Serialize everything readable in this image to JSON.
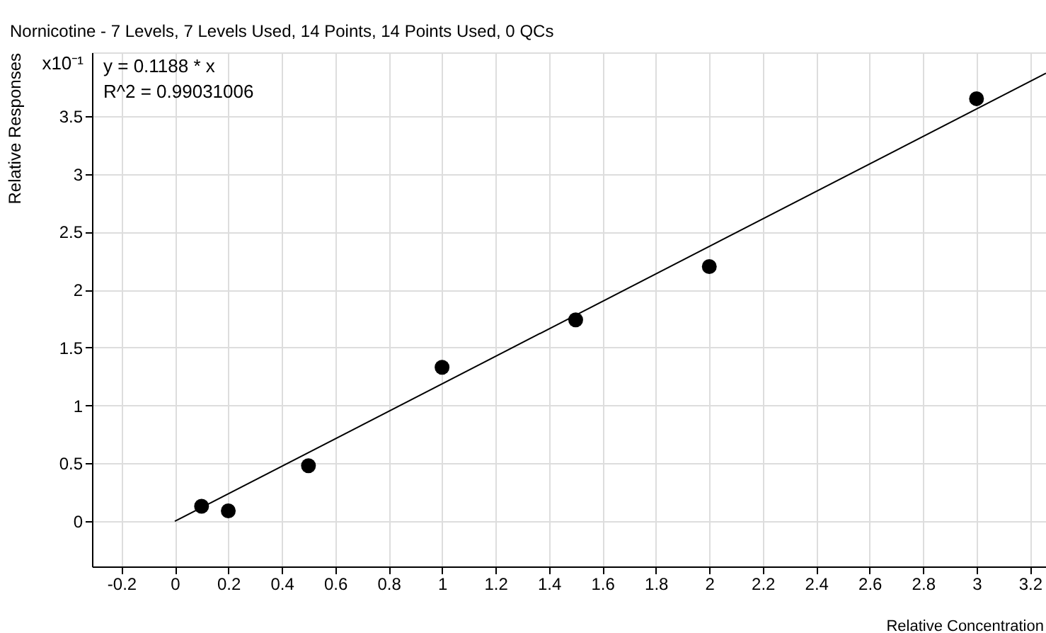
{
  "chart_data": {
    "type": "scatter",
    "title": "Nornicotine - 7 Levels, 7 Levels Used, 14 Points, 14 Points Used, 0 QCs",
    "xlabel": "Relative Concentration",
    "ylabel": "Relative Responses",
    "annotations": [
      "y = 0.1188 * x",
      "R^2 = 0.99031006",
      "x10⁻¹"
    ],
    "series": [
      {
        "color": "#000000",
        "marker": "circle",
        "x": [
          0.1,
          0.2,
          0.5,
          1,
          1.5,
          2,
          3
        ],
        "values": [
          0.13,
          0.09,
          0.48,
          1.33,
          1.74,
          2.2,
          3.65
        ]
      },
      {
        "type": "line",
        "color": "#000000",
        "marker": "none",
        "line_style": "solid",
        "x": [
          0,
          3.26
        ],
        "values": [
          0,
          3.87
        ]
      }
    ],
    "xlim": [
      -0.31,
      3.26
    ],
    "ylim": [
      -0.39,
      4.05
    ],
    "xticks": [
      -0.2,
      0,
      0.2,
      0.4,
      0.6,
      0.8,
      1,
      1.2,
      1.4,
      1.6,
      1.8,
      2,
      2.2,
      2.4,
      2.6,
      2.8,
      3,
      3.2
    ],
    "yticks": [
      0,
      0.5,
      1,
      1.5,
      2,
      2.5,
      3,
      3.5
    ],
    "grid": true
  }
}
